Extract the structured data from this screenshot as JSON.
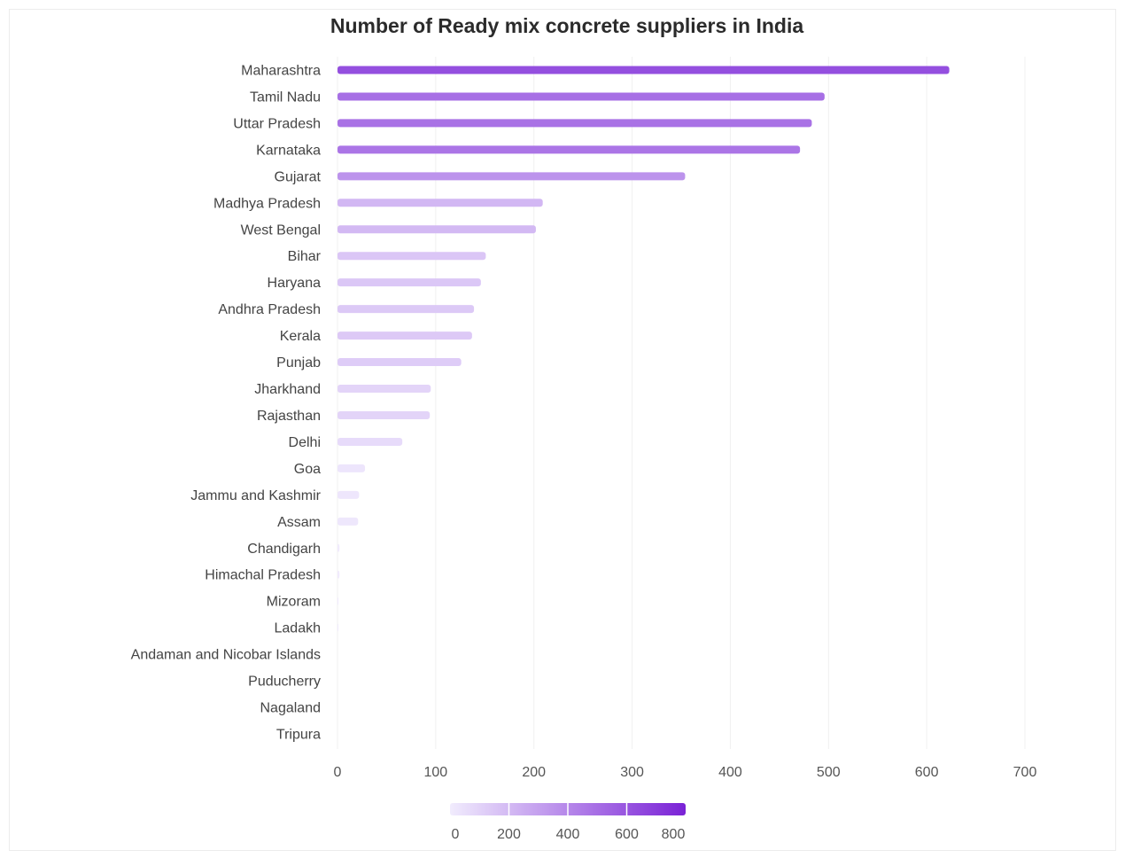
{
  "chart_data": {
    "type": "bar",
    "orientation": "horizontal",
    "title": "Number of Ready mix concrete suppliers in India",
    "xlabel": "",
    "ylabel": "",
    "xlim": [
      0,
      700
    ],
    "x_ticks": [
      0,
      100,
      200,
      300,
      400,
      500,
      600,
      700
    ],
    "grid": true,
    "categories": [
      "Maharashtra",
      "Tamil Nadu",
      "Uttar Pradesh",
      "Karnataka",
      "Gujarat",
      "Madhya Pradesh",
      "West Bengal",
      "Bihar",
      "Haryana",
      "Andhra Pradesh",
      "Kerala",
      "Punjab",
      "Jharkhand",
      "Rajasthan",
      "Delhi",
      "Goa",
      "Jammu and Kashmir",
      "Assam",
      "Chandigarh",
      "Himachal Pradesh",
      "Mizoram",
      "Ladakh",
      "Andaman and Nicobar Islands",
      "Puducherry",
      "Nagaland",
      "Tripura"
    ],
    "values": [
      623,
      496,
      483,
      471,
      354,
      209,
      202,
      151,
      146,
      139,
      137,
      126,
      95,
      94,
      66,
      28,
      22,
      21,
      2,
      2,
      1,
      1,
      0,
      0,
      0,
      0
    ],
    "color_scale": {
      "min": 0,
      "max": 800,
      "ticks": [
        0,
        200,
        400,
        600,
        800
      ],
      "color_low": "#f1ecfd",
      "color_high": "#7a22d6",
      "placement": "bottom-center"
    }
  }
}
